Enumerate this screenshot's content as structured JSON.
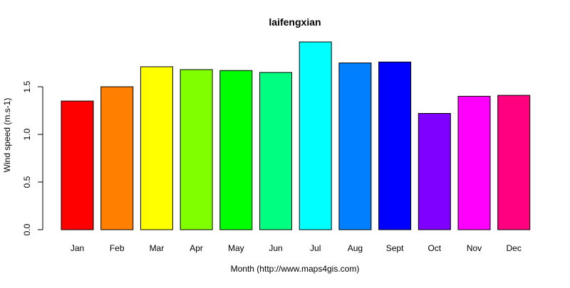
{
  "chart_data": {
    "type": "bar",
    "title": "laifengxian",
    "xlabel": "Month (http://www.maps4gis.com)",
    "ylabel": "Wind speed (m.s-1)",
    "categories": [
      "Jan",
      "Feb",
      "Mar",
      "Apr",
      "May",
      "Jun",
      "Jul",
      "Aug",
      "Sept",
      "Oct",
      "Nov",
      "Dec"
    ],
    "values": [
      1.35,
      1.5,
      1.71,
      1.68,
      1.67,
      1.65,
      1.97,
      1.75,
      1.76,
      1.22,
      1.4,
      1.41
    ],
    "colors": [
      "#FF0000",
      "#FF8000",
      "#FFFF00",
      "#80FF00",
      "#00FF00",
      "#00FF80",
      "#00FFFF",
      "#0080FF",
      "#0000FF",
      "#8000FF",
      "#FF00FF",
      "#FF0080"
    ],
    "yticks": [
      "0.0",
      "0.5",
      "1.0",
      "1.5"
    ],
    "ylim": [
      0,
      2.0
    ],
    "grid": false,
    "legend": "none"
  }
}
